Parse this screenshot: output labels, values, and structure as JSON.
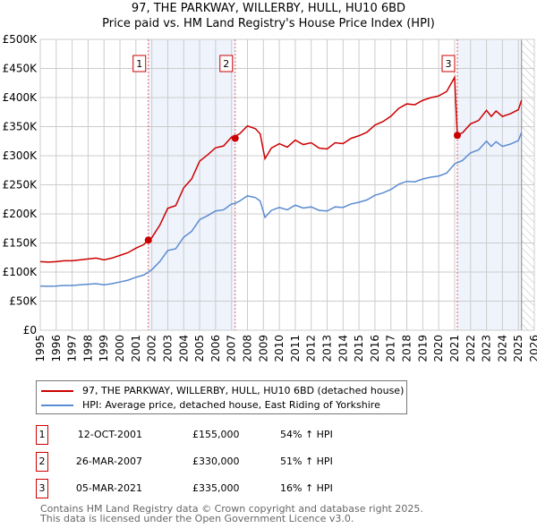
{
  "chart_data": {
    "type": "line",
    "title": "97, THE PARKWAY, WILLERBY, HULL, HU10 6BD",
    "subtitle": "Price paid vs. HM Land Registry's House Price Index (HPI)",
    "xlim": [
      1995,
      2026
    ],
    "ylim": [
      0,
      500000
    ],
    "y_ticks": [
      0,
      50000,
      100000,
      150000,
      200000,
      250000,
      300000,
      350000,
      400000,
      450000,
      500000
    ],
    "y_tick_labels": [
      "£0",
      "£50K",
      "£100K",
      "£150K",
      "£200K",
      "£250K",
      "£300K",
      "£350K",
      "£400K",
      "£450K",
      "£500K"
    ],
    "x_ticks": [
      1995,
      1996,
      1997,
      1998,
      1999,
      2000,
      2001,
      2002,
      2003,
      2004,
      2005,
      2006,
      2007,
      2008,
      2009,
      2010,
      2011,
      2012,
      2013,
      2014,
      2015,
      2016,
      2017,
      2018,
      2019,
      2020,
      2021,
      2022,
      2023,
      2024,
      2025,
      2026
    ],
    "grid": true,
    "hpi_series": {
      "name": "HPI: Average price, detached house, East Riding of Yorkshire",
      "color": "#5b8bd0",
      "x": [
        1995,
        1995.5,
        1996,
        1996.5,
        1997,
        1997.5,
        1998,
        1998.5,
        1999,
        1999.5,
        2000,
        2000.5,
        2001,
        2001.5,
        2001.78,
        2002,
        2002.5,
        2003,
        2003.5,
        2004,
        2004.5,
        2005,
        2005.5,
        2006,
        2006.5,
        2007,
        2007.23,
        2007.5,
        2008,
        2008.5,
        2008.8,
        2009.1,
        2009.5,
        2010,
        2010.5,
        2011,
        2011.5,
        2012,
        2012.5,
        2013,
        2013.5,
        2014,
        2014.5,
        2015,
        2015.5,
        2016,
        2016.5,
        2017,
        2017.5,
        2018,
        2018.5,
        2019,
        2019.5,
        2020,
        2020.5,
        2021,
        2021.17,
        2021.5,
        2022,
        2022.5,
        2023,
        2023.3,
        2023.6,
        2024,
        2024.5,
        2025,
        2025.2
      ],
      "y": [
        76000,
        75500,
        76000,
        77000,
        77000,
        78000,
        79000,
        80000,
        78000,
        80000,
        83000,
        86000,
        91000,
        95000,
        100000,
        104000,
        118000,
        137000,
        140000,
        160000,
        170000,
        190000,
        197000,
        205000,
        207000,
        217000,
        218000,
        222000,
        231000,
        228000,
        222000,
        194000,
        206000,
        211000,
        207000,
        215000,
        210000,
        212000,
        206000,
        205000,
        212000,
        211000,
        217000,
        220000,
        224000,
        232000,
        236000,
        242000,
        251000,
        256000,
        255000,
        260000,
        263000,
        265000,
        270000,
        286000,
        288000,
        292000,
        305000,
        310000,
        325000,
        316000,
        324000,
        316000,
        320000,
        326000,
        340000
      ]
    },
    "price_series": {
      "name": "97, THE PARKWAY, WILLERBY, HULL, HU10 6BD (detached house)",
      "color": "#cc0000",
      "derived_from": "hpi_series scaled to sale prices",
      "scale_periods": [
        {
          "from": 1995,
          "to": 2001.78,
          "ratio": 1.55
        },
        {
          "from": 2001.78,
          "to": 2007.23,
          "ratio": 1.53
        },
        {
          "from": 2007.23,
          "to": 2021.16,
          "ratio": 1.52
        },
        {
          "from": 2021.17,
          "to": 2026,
          "ratio": 1.163
        }
      ]
    },
    "sales": [
      {
        "num": "1",
        "date": "12-OCT-2001",
        "x": 2001.78,
        "price": 155000,
        "price_label": "£155,000",
        "hpi": "54% ↑ HPI"
      },
      {
        "num": "2",
        "date": "26-MAR-2007",
        "x": 2007.23,
        "price": 330000,
        "price_label": "£330,000",
        "hpi": "51% ↑ HPI"
      },
      {
        "num": "3",
        "date": "05-MAR-2021",
        "x": 2021.17,
        "price": 335000,
        "price_label": "£335,000",
        "hpi": "16% ↑ HPI"
      }
    ],
    "shaded_ranges": [
      [
        2001.78,
        2007.23
      ],
      [
        2021.17,
        2025.2
      ]
    ],
    "forecast_hatch_from": 2025.2,
    "legend_placement": "below"
  },
  "footer": {
    "line1": "Contains HM Land Registry data © Crown copyright and database right 2025.",
    "line2": "This data is licensed under the Open Government Licence v3.0."
  }
}
